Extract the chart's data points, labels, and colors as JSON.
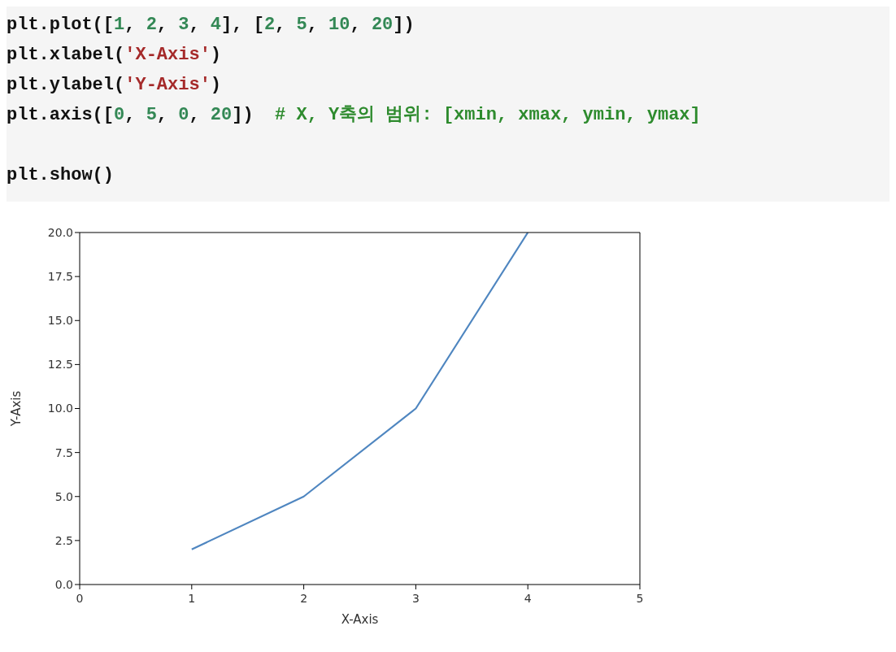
{
  "chart_data": {
    "type": "line",
    "xlabel": "X-Axis",
    "ylabel": "Y-Axis",
    "annotations": [
      "plt.plot([1, 2, 3, 4], [2, 5, 10, 20])\nplt.xlabel('X-Axis')\nplt.ylabel('Y-Axis')\nplt.axis([0, 5, 0, 20])  # X, Y축의 범위: [xmin, xmax, ymin, ymax]\n\nplt.show()"
    ],
    "x": [
      1,
      2,
      3,
      4
    ],
    "series": [
      {
        "color": "#4f86c0",
        "values": [
          2,
          5,
          10,
          20
        ]
      }
    ],
    "xlim": [
      0,
      5
    ],
    "xticks": [
      0,
      1,
      2,
      3,
      4,
      5
    ],
    "ylim": [
      0,
      20
    ],
    "yticks": [
      {
        "value": 0,
        "label": "0.0"
      },
      {
        "value": 2.5,
        "label": "2.5"
      },
      {
        "value": 5,
        "label": "5.0"
      },
      {
        "value": 7.5,
        "label": "7.5"
      },
      {
        "value": 10,
        "label": "10.0"
      },
      {
        "value": 12.5,
        "label": "12.5"
      },
      {
        "value": 15,
        "label": "15.0"
      },
      {
        "value": 17.5,
        "label": "17.5"
      },
      {
        "value": 20,
        "label": "20.0"
      }
    ],
    "grid": false,
    "legend": false,
    "marker": "none",
    "line_style": "solid"
  }
}
